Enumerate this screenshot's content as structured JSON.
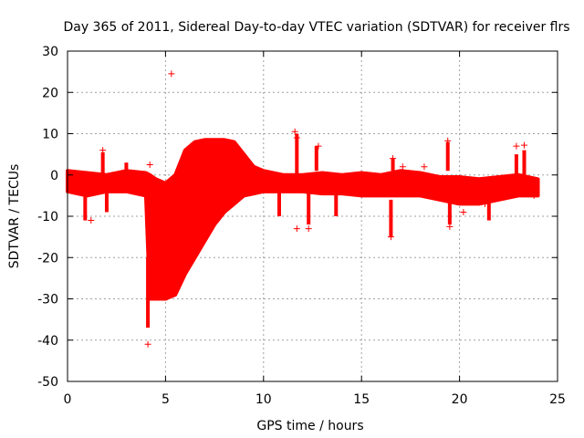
{
  "chart_data": {
    "type": "scatter",
    "title": "Day 365 of 2011, Sidereal Day-to-day VTEC variation (SDTVAR) for receiver flrs",
    "xlabel": "GPS time / hours",
    "ylabel": "SDTVAR / TECUs",
    "xlim": [
      0,
      25
    ],
    "ylim": [
      -50,
      30
    ],
    "xticks": [
      "0",
      "5",
      "10",
      "15",
      "20",
      "25"
    ],
    "yticks": [
      "30",
      "20",
      "10",
      "0",
      "-10",
      "-20",
      "-30",
      "-40",
      "-50"
    ],
    "grid": true,
    "marker": "+",
    "color": "#ff0000",
    "band": {
      "x": [
        0.0,
        1.0,
        2.0,
        3.0,
        4.0,
        4.2,
        4.5,
        5.0,
        5.5,
        6.0,
        6.5,
        7.0,
        7.5,
        8.0,
        8.5,
        9.0,
        9.5,
        10.0,
        11.0,
        12.0,
        13.0,
        14.0,
        15.0,
        16.0,
        17.0,
        18.0,
        19.0,
        20.0,
        21.0,
        22.0,
        23.0,
        24.0
      ],
      "upper": [
        1.0,
        0.5,
        0.0,
        1.0,
        0.5,
        0.0,
        -1.0,
        -2.0,
        0.0,
        6.0,
        8.0,
        8.5,
        8.5,
        8.5,
        8.0,
        5.0,
        2.0,
        1.0,
        0.0,
        0.0,
        0.5,
        0.0,
        0.5,
        0.0,
        1.0,
        0.5,
        -0.5,
        -0.5,
        -1.0,
        -0.5,
        0.0,
        -1.0
      ],
      "lower": [
        -4.0,
        -5.0,
        -4.0,
        -4.0,
        -5.0,
        -30.0,
        -30.0,
        -30.0,
        -29.0,
        -24.0,
        -20.0,
        -16.0,
        -12.0,
        -9.0,
        -7.0,
        -5.0,
        -4.5,
        -4.0,
        -4.0,
        -4.0,
        -4.5,
        -4.5,
        -5.0,
        -5.0,
        -5.0,
        -5.0,
        -6.0,
        -7.0,
        -7.0,
        -6.0,
        -5.0,
        -5.0
      ]
    },
    "spikes": [
      {
        "x": 0.9,
        "y_from": -4,
        "y_to": -11
      },
      {
        "x": 1.8,
        "y_from": 0,
        "y_to": 5.5
      },
      {
        "x": 2.0,
        "y_from": -4,
        "y_to": -9
      },
      {
        "x": 3.0,
        "y_from": -4,
        "y_to": 3
      },
      {
        "x": 4.1,
        "y_from": -20,
        "y_to": -37
      },
      {
        "x": 4.2,
        "y_from": -5,
        "y_to": -11
      },
      {
        "x": 10.8,
        "y_from": -4,
        "y_to": -10
      },
      {
        "x": 11.7,
        "y_from": 0,
        "y_to": 10
      },
      {
        "x": 12.3,
        "y_from": -4,
        "y_to": -12
      },
      {
        "x": 12.7,
        "y_from": 1,
        "y_to": 7
      },
      {
        "x": 13.7,
        "y_from": -4,
        "y_to": -10
      },
      {
        "x": 16.5,
        "y_from": -6,
        "y_to": -15
      },
      {
        "x": 16.6,
        "y_from": 1,
        "y_to": 4
      },
      {
        "x": 19.4,
        "y_from": 1,
        "y_to": 8
      },
      {
        "x": 19.5,
        "y_from": -5,
        "y_to": -12
      },
      {
        "x": 21.5,
        "y_from": -4,
        "y_to": -11
      },
      {
        "x": 22.9,
        "y_from": 0,
        "y_to": 5
      },
      {
        "x": 23.3,
        "y_from": 0,
        "y_to": 6
      }
    ],
    "points": [
      {
        "x": 5.3,
        "y": 24.5
      },
      {
        "x": 4.1,
        "y": -41
      },
      {
        "x": 1.8,
        "y": 6
      },
      {
        "x": 11.6,
        "y": 10.5
      },
      {
        "x": 11.7,
        "y": 9
      },
      {
        "x": 12.8,
        "y": 7
      },
      {
        "x": 16.6,
        "y": 4
      },
      {
        "x": 19.4,
        "y": 8.3
      },
      {
        "x": 19.5,
        "y": -12.5
      },
      {
        "x": 22.9,
        "y": 7
      },
      {
        "x": 23.3,
        "y": 7.2
      },
      {
        "x": 11.7,
        "y": -13
      },
      {
        "x": 12.3,
        "y": -13
      },
      {
        "x": 16.5,
        "y": -15
      },
      {
        "x": 1.2,
        "y": -11
      },
      {
        "x": 4.2,
        "y": 2.5
      },
      {
        "x": 9.0,
        "y": -1.0
      },
      {
        "x": 17.1,
        "y": 2
      },
      {
        "x": 18.2,
        "y": 2
      },
      {
        "x": 20.2,
        "y": -9
      },
      {
        "x": 21.3,
        "y": -7
      },
      {
        "x": 23.8,
        "y": -5
      }
    ]
  }
}
